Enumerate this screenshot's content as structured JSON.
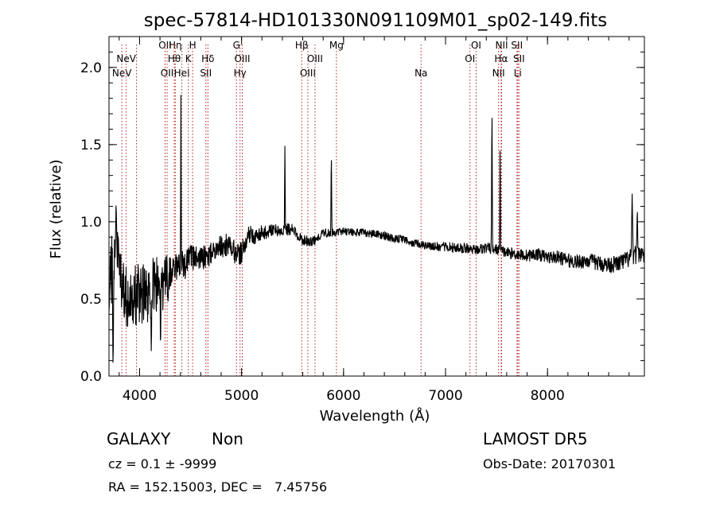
{
  "chart_data": {
    "type": "line",
    "title": "spec-57814-HD101330N091109M01_sp02-149.fits",
    "xlabel": "Wavelength (Å)",
    "ylabel": "Flux (relative)",
    "xlim": [
      3700,
      8950
    ],
    "ylim": [
      0.0,
      2.2
    ],
    "xticks": [
      {
        "value": 4000,
        "label": "4000"
      },
      {
        "value": 5000,
        "label": "5000"
      },
      {
        "value": 6000,
        "label": "6000"
      },
      {
        "value": 7000,
        "label": "7000"
      },
      {
        "value": 8000,
        "label": "8000"
      }
    ],
    "yticks": [
      {
        "value": 0.0,
        "label": "0.0"
      },
      {
        "value": 0.5,
        "label": "0.5"
      },
      {
        "value": 1.0,
        "label": "1.0"
      },
      {
        "value": 1.5,
        "label": "1.5"
      },
      {
        "value": 2.0,
        "label": "2.0"
      }
    ],
    "x_minor_step": 200,
    "y_minor_step": 0.1,
    "line_color": "#000000",
    "marker_color": "#b22222",
    "lines": [
      {
        "wavelength": 3826,
        "label": "NeV",
        "row": 2
      },
      {
        "wavelength": 3869,
        "label": "NeV",
        "row": 1
      },
      {
        "wavelength": 3970,
        "label": "",
        "row": 0
      },
      {
        "wavelength": 4250,
        "label": "OII",
        "row": 0
      },
      {
        "wavelength": 4270,
        "label": "OII",
        "row": 2
      },
      {
        "wavelength": 4350,
        "label": "Hη",
        "row": 0
      },
      {
        "wavelength": 4340,
        "label": "Hθ",
        "row": 1
      },
      {
        "wavelength": 4415,
        "label": "HeI",
        "row": 2
      },
      {
        "wavelength": 4478,
        "label": "K",
        "row": 1
      },
      {
        "wavelength": 4520,
        "label": "H",
        "row": 0
      },
      {
        "wavelength": 4650,
        "label": "SII",
        "row": 2
      },
      {
        "wavelength": 4670,
        "label": "Hδ",
        "row": 1
      },
      {
        "wavelength": 4950,
        "label": "G",
        "row": 0
      },
      {
        "wavelength": 5007,
        "label": "OIII",
        "row": 1
      },
      {
        "wavelength": 4985,
        "label": "Hγ",
        "row": 2
      },
      {
        "wavelength": 5590,
        "label": "Hβ",
        "row": 0
      },
      {
        "wavelength": 5650,
        "label": "OIII",
        "row": 2
      },
      {
        "wavelength": 5720,
        "label": "OIII",
        "row": 1
      },
      {
        "wavelength": 5930,
        "label": "Mg",
        "row": 0
      },
      {
        "wavelength": 6760,
        "label": "Na",
        "row": 2
      },
      {
        "wavelength": 7240,
        "label": "OI",
        "row": 1
      },
      {
        "wavelength": 7300,
        "label": "OI",
        "row": 0
      },
      {
        "wavelength": 7520,
        "label": "NII",
        "row": 2
      },
      {
        "wavelength": 7550,
        "label": "NII",
        "row": 0
      },
      {
        "wavelength": 7545,
        "label": "Hα",
        "row": 1
      },
      {
        "wavelength": 7700,
        "label": "SII",
        "row": 0
      },
      {
        "wavelength": 7720,
        "label": "SII",
        "row": 1
      },
      {
        "wavelength": 7708,
        "label": "Li",
        "row": 2
      }
    ],
    "series": [
      {
        "anchors": [
          [
            3700,
            0.55
          ],
          [
            3730,
            0.72
          ],
          [
            3760,
            0.8
          ],
          [
            3800,
            0.68
          ],
          [
            3850,
            0.55
          ],
          [
            3900,
            0.5
          ],
          [
            3950,
            0.52
          ],
          [
            4000,
            0.55
          ],
          [
            4050,
            0.52
          ],
          [
            4100,
            0.55
          ],
          [
            4150,
            0.6
          ],
          [
            4200,
            0.58
          ],
          [
            4250,
            0.62
          ],
          [
            4300,
            0.68
          ],
          [
            4350,
            0.7
          ],
          [
            4400,
            0.72
          ],
          [
            4450,
            0.72
          ],
          [
            4500,
            0.76
          ],
          [
            4550,
            0.78
          ],
          [
            4600,
            0.76
          ],
          [
            4650,
            0.77
          ],
          [
            4700,
            0.8
          ],
          [
            4750,
            0.82
          ],
          [
            4800,
            0.84
          ],
          [
            4850,
            0.85
          ],
          [
            4900,
            0.84
          ],
          [
            4950,
            0.78
          ],
          [
            5000,
            0.8
          ],
          [
            5050,
            0.9
          ],
          [
            5100,
            0.92
          ],
          [
            5150,
            0.9
          ],
          [
            5200,
            0.93
          ],
          [
            5300,
            0.94
          ],
          [
            5400,
            0.95
          ],
          [
            5500,
            0.95
          ],
          [
            5600,
            0.88
          ],
          [
            5700,
            0.87
          ],
          [
            5800,
            0.93
          ],
          [
            5900,
            0.93
          ],
          [
            6000,
            0.94
          ],
          [
            6100,
            0.93
          ],
          [
            6200,
            0.93
          ],
          [
            6300,
            0.92
          ],
          [
            6400,
            0.91
          ],
          [
            6500,
            0.89
          ],
          [
            6600,
            0.88
          ],
          [
            6700,
            0.86
          ],
          [
            6800,
            0.85
          ],
          [
            6900,
            0.84
          ],
          [
            7000,
            0.84
          ],
          [
            7100,
            0.83
          ],
          [
            7200,
            0.83
          ],
          [
            7300,
            0.82
          ],
          [
            7400,
            0.83
          ],
          [
            7500,
            0.82
          ],
          [
            7600,
            0.8
          ],
          [
            7700,
            0.79
          ],
          [
            7800,
            0.78
          ],
          [
            7900,
            0.79
          ],
          [
            8000,
            0.77
          ],
          [
            8100,
            0.77
          ],
          [
            8200,
            0.75
          ],
          [
            8300,
            0.74
          ],
          [
            8400,
            0.75
          ],
          [
            8500,
            0.73
          ],
          [
            8600,
            0.72
          ],
          [
            8700,
            0.73
          ],
          [
            8800,
            0.76
          ],
          [
            8900,
            0.8
          ],
          [
            8950,
            0.78
          ]
        ],
        "noise": [
          [
            3700,
            0.22
          ],
          [
            4000,
            0.2
          ],
          [
            4280,
            0.18
          ],
          [
            4320,
            0.1
          ],
          [
            4600,
            0.08
          ],
          [
            5000,
            0.07
          ],
          [
            5300,
            0.04
          ],
          [
            6000,
            0.025
          ],
          [
            7000,
            0.03
          ],
          [
            8000,
            0.04
          ],
          [
            8950,
            0.06
          ]
        ],
        "peaks": [
          [
            4405,
            1.82,
            5
          ],
          [
            5425,
            1.49,
            6
          ],
          [
            5880,
            1.49,
            6
          ],
          [
            7455,
            1.84,
            6
          ],
          [
            7535,
            1.62,
            5
          ],
          [
            3770,
            1.14,
            10
          ],
          [
            8830,
            1.18,
            10
          ],
          [
            8880,
            1.1,
            8
          ]
        ],
        "dips": [
          [
            3740,
            0.02,
            8
          ],
          [
            4115,
            0.12,
            6
          ],
          [
            4205,
            0.18,
            6
          ]
        ]
      }
    ]
  },
  "footer": {
    "class_label": "GALAXY",
    "subclass_label": "Non",
    "cz_text": "cz = 0.1 ± -9999",
    "coords_text": "RA = 152.15003, DEC =   7.45756",
    "survey": "LAMOST DR5",
    "obs_date": "Obs-Date: 20170301"
  }
}
